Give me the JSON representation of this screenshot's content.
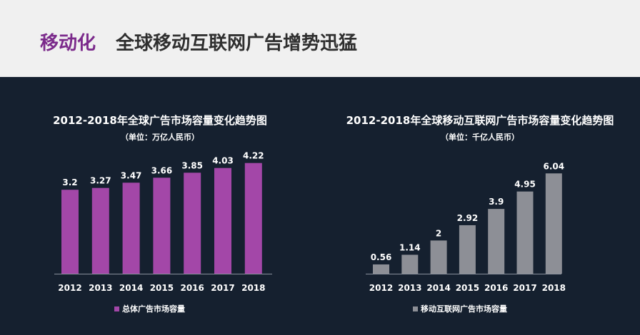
{
  "header": {
    "accent": "移动化",
    "title": "全球移动互联网广告增势迅猛"
  },
  "colors": {
    "header_bg": "#f0f0f0",
    "panel_bg": "#15202f",
    "accent": "#7b2a8b"
  },
  "chart_data": [
    {
      "type": "bar",
      "title": "2012-2018年全球广告市场容量变化趋势图",
      "subtitle": "（单位：万亿人民币）",
      "categories": [
        "2012",
        "2013",
        "2014",
        "2015",
        "2016",
        "2017",
        "2018"
      ],
      "series": [
        {
          "name": "总体广告市场容量",
          "color": "#a347a8",
          "values": [
            3.2,
            3.27,
            3.47,
            3.66,
            3.85,
            4.03,
            4.22
          ]
        }
      ],
      "value_labels": [
        "3.2",
        "3.27",
        "3.47",
        "3.66",
        "3.85",
        "4.03",
        "4.22"
      ],
      "legend": "bottom",
      "grid": false
    },
    {
      "type": "bar",
      "title": "2012-2018年全球移动互联网广告市场容量变化趋势图",
      "subtitle": "（单位：千亿人民币）",
      "categories": [
        "2012",
        "2013",
        "2014",
        "2015",
        "2016",
        "2017",
        "2018"
      ],
      "series": [
        {
          "name": "移动互联网广告市场容量",
          "color": "#8d8f96",
          "values": [
            0.56,
            1.14,
            2,
            2.92,
            3.9,
            4.95,
            6.04
          ]
        }
      ],
      "value_labels": [
        "0.56",
        "1.14",
        "2",
        "2.92",
        "3.9",
        "4.95",
        "6.04"
      ],
      "legend": "bottom",
      "grid": false
    }
  ]
}
